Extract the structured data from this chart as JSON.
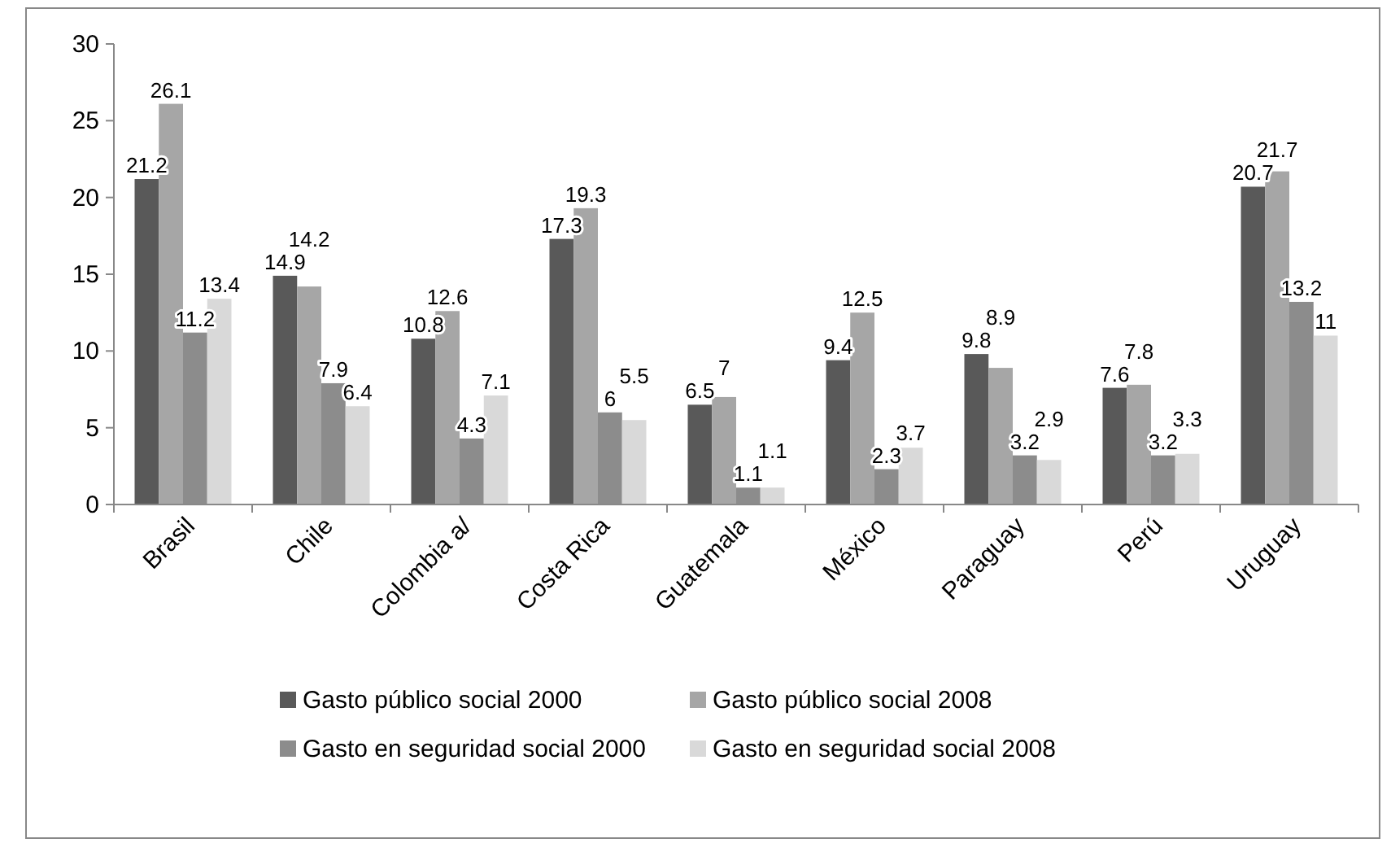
{
  "chart_data": {
    "type": "bar",
    "categories": [
      "Brasil",
      "Chile",
      "Colombia a/",
      "Costa Rica",
      "Guatemala",
      "México",
      "Paraguay",
      "Perú",
      "Uruguay"
    ],
    "series": [
      {
        "name": "Gasto público social 2000",
        "color": "#595959",
        "values": [
          21.2,
          14.9,
          10.8,
          17.3,
          6.5,
          9.4,
          9.8,
          7.6,
          20.7
        ]
      },
      {
        "name": "Gasto público social 2008",
        "color": "#a6a6a6",
        "values": [
          26.1,
          14.2,
          12.6,
          19.3,
          7,
          12.5,
          8.9,
          7.8,
          21.7
        ]
      },
      {
        "name": "Gasto en seguridad social 2000",
        "color": "#8c8c8c",
        "values": [
          11.2,
          7.9,
          4.3,
          6,
          1.1,
          2.3,
          3.2,
          3.2,
          13.2
        ]
      },
      {
        "name": "Gasto en seguridad social 2008",
        "color": "#d9d9d9",
        "values": [
          13.4,
          6.4,
          7.1,
          5.5,
          1.1,
          3.7,
          2.9,
          3.3,
          11
        ]
      }
    ],
    "ylim": [
      0,
      30
    ],
    "yticks": [
      0,
      5,
      10,
      15,
      20,
      25,
      30
    ],
    "data_labels": true,
    "grid": false,
    "legend": "bottom"
  }
}
